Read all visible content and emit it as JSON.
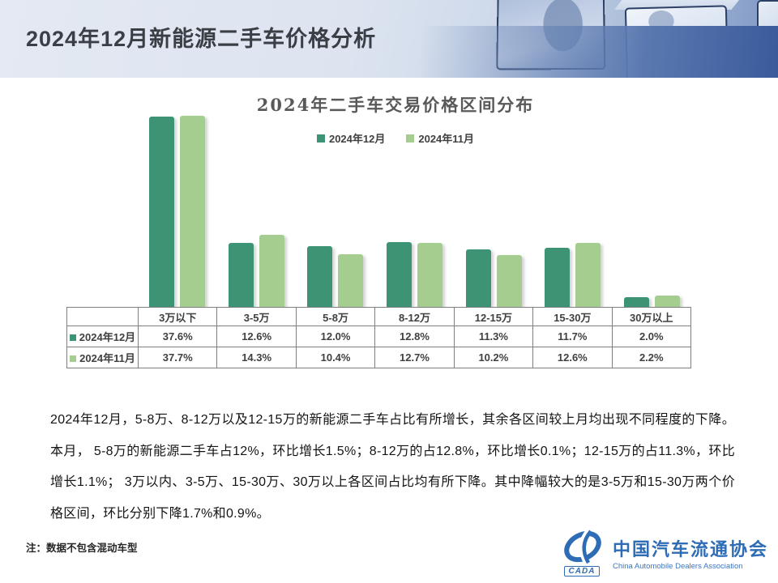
{
  "header": {
    "title": "2024年12月新能源二手车价格分析"
  },
  "chart_data": {
    "type": "bar",
    "title": "2024年二手车交易价格区间分布",
    "categories": [
      "3万以下",
      "3-5万",
      "5-8万",
      "8-12万",
      "12-15万",
      "15-30万",
      "30万以上"
    ],
    "series": [
      {
        "name": "2024年12月",
        "color": "#3C9474",
        "values": [
          37.6,
          12.6,
          12.0,
          12.8,
          11.3,
          11.7,
          2.0
        ]
      },
      {
        "name": "2024年11月",
        "color": "#A5CD8F",
        "values": [
          37.7,
          14.3,
          10.4,
          12.7,
          10.2,
          12.6,
          2.2
        ]
      }
    ],
    "unit": "%",
    "ylim": [
      0,
      40
    ],
    "grid": false,
    "legend_position": "top",
    "shows_data_table": true
  },
  "analysis": {
    "text": "2024年12月，5-8万、8-12万以及12-15万的新能源二手车占比有所增长，其余各区间较上月均出现不同程度的下降。本月， 5-8万的新能源二手车占12%，环比增长1.5%；8-12万的占12.8%，环比增长0.1%；12-15万的占11.3%，环比增长1.1%； 3万以内、3-5万、15-30万、30万以上各区间占比均有所下降。其中降幅较大的是3-5万和15-30万两个价格区间，环比分别下降1.7%和0.9%。"
  },
  "footnote": {
    "text": "注：数据不包含混动车型"
  },
  "logo": {
    "abbr": "CADA",
    "org_cn": "中国汽车流通协会",
    "org_en": "China Automobile Dealers Association",
    "brand_color": "#2E6CB5"
  }
}
